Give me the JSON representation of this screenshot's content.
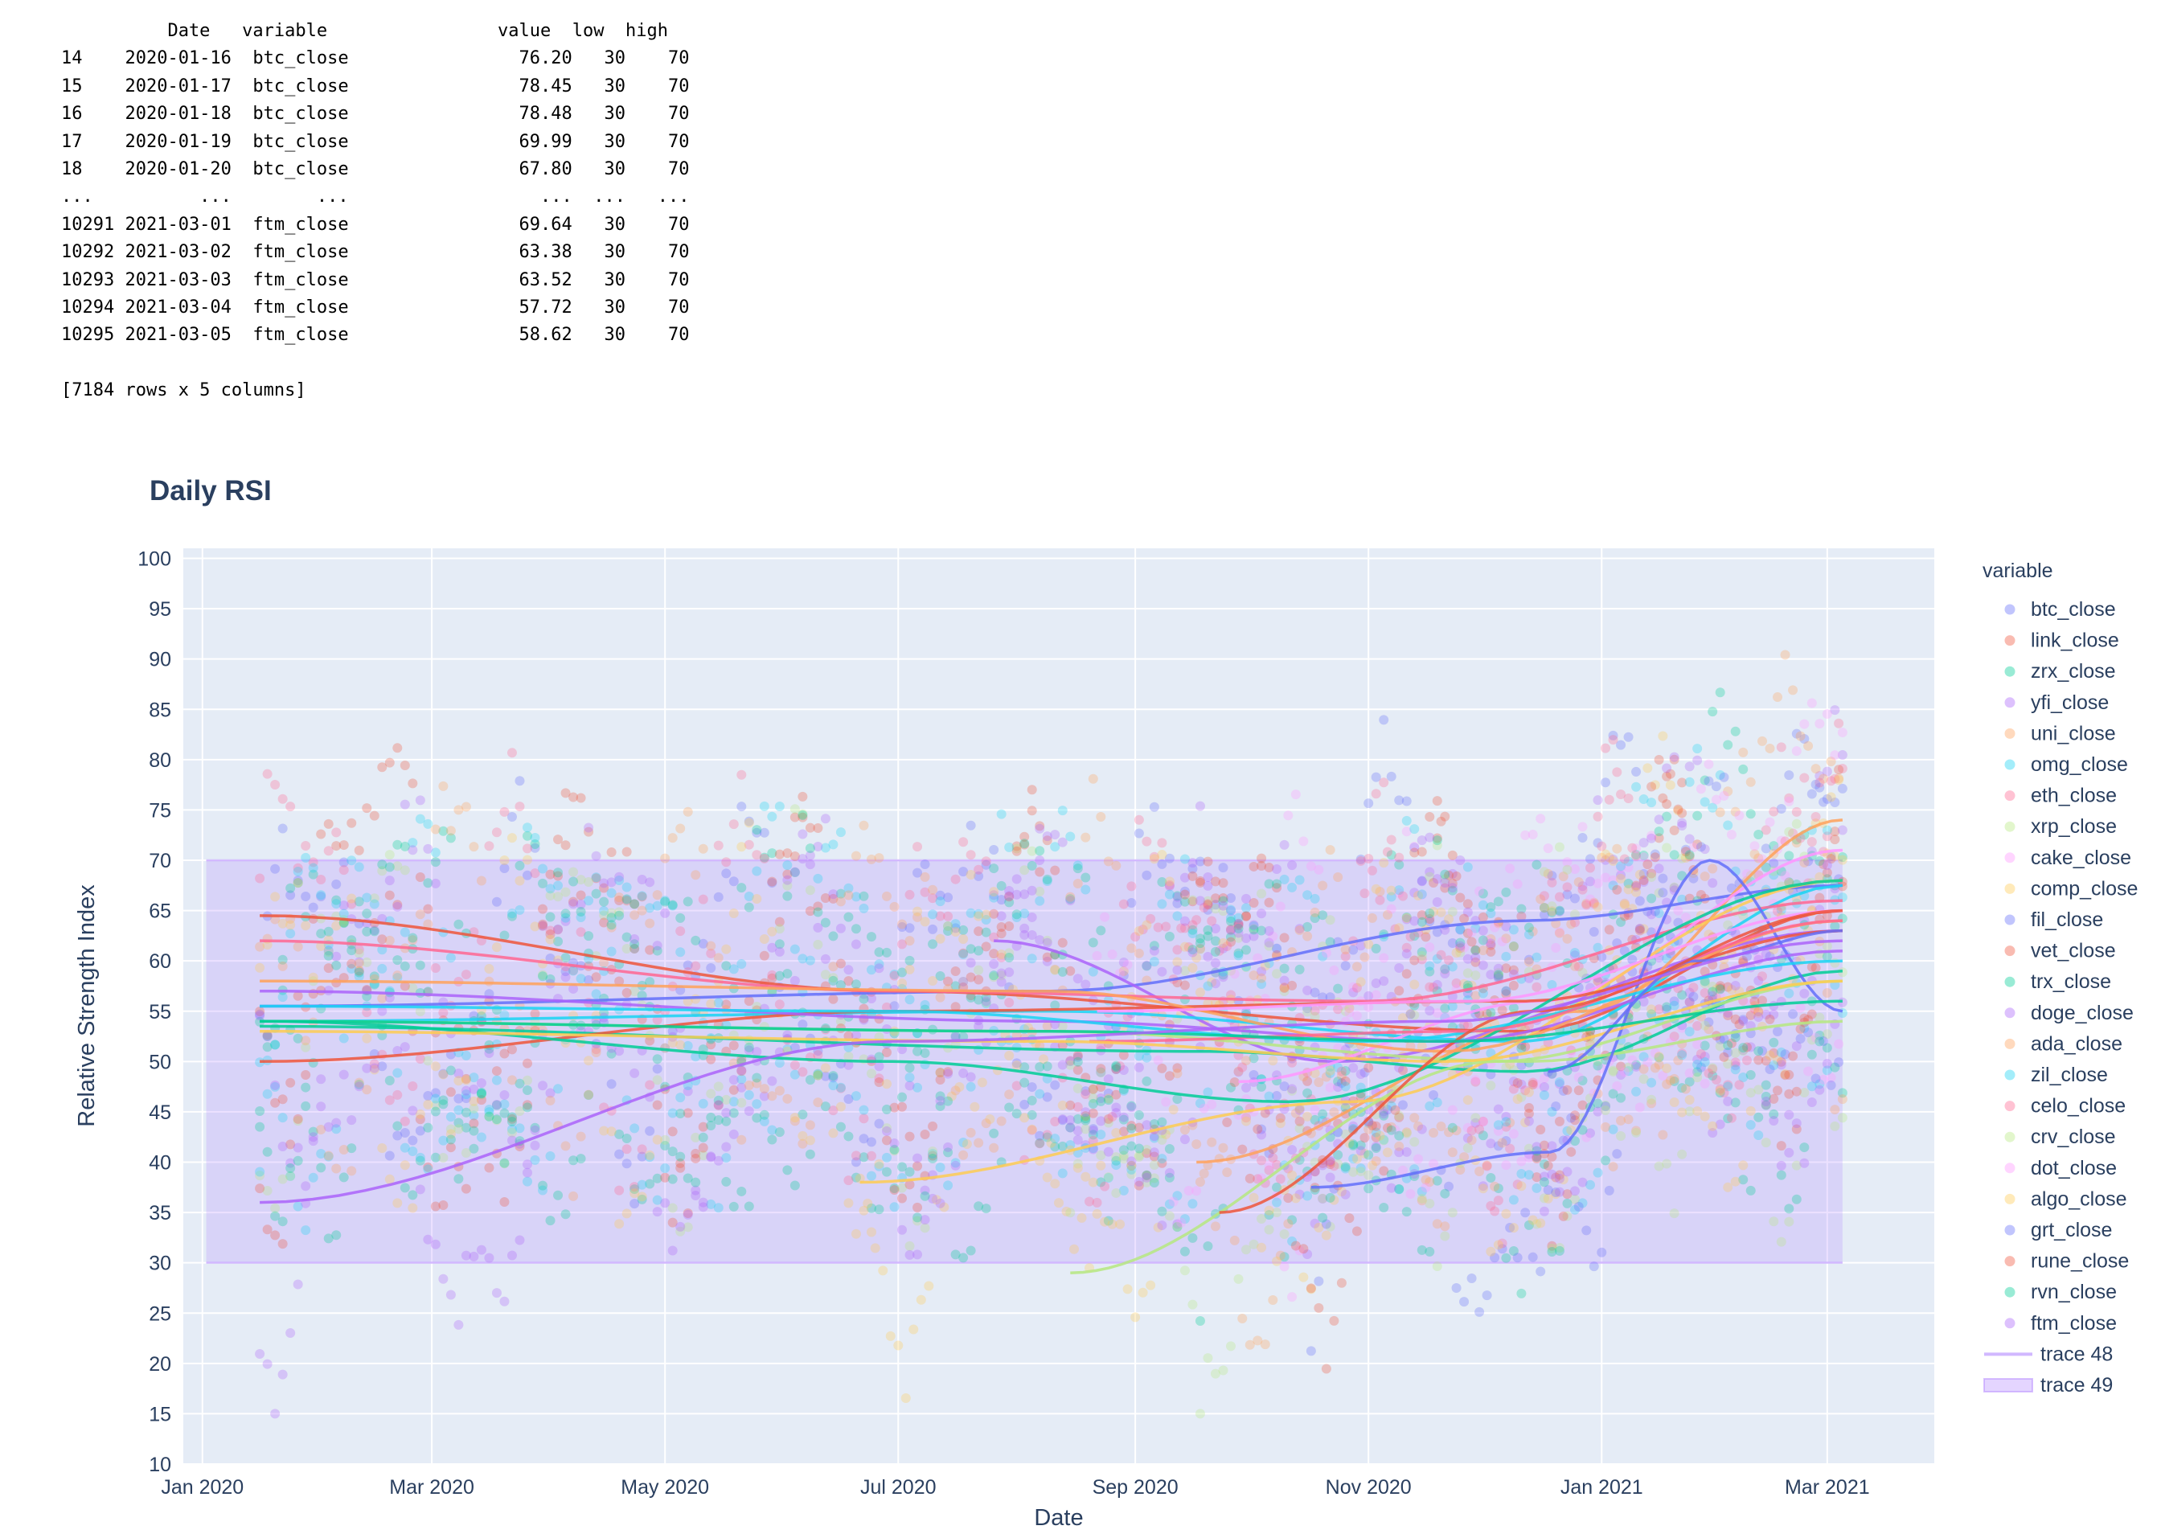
{
  "dataframe": {
    "header": "          Date   variable                value  low  high",
    "rows": [
      "14    2020-01-16  btc_close                76.20   30    70",
      "15    2020-01-17  btc_close                78.45   30    70",
      "16    2020-01-18  btc_close                78.48   30    70",
      "17    2020-01-19  btc_close                69.99   30    70",
      "18    2020-01-20  btc_close                67.80   30    70",
      "...          ...        ...                  ...  ...   ...",
      "10291 2021-03-01  ftm_close                69.64   30    70",
      "10292 2021-03-02  ftm_close                63.38   30    70",
      "10293 2021-03-03  ftm_close                63.52   30    70",
      "10294 2021-03-04  ftm_close                57.72   30    70",
      "10295 2021-03-05  ftm_close                58.62   30    70"
    ],
    "footer": "[7184 rows x 5 columns]"
  },
  "chart_data": {
    "type": "scatter",
    "title": "Daily RSI",
    "xlabel": "Date",
    "ylabel": "Relative Strength Index",
    "legend_title": "variable",
    "legend_placement": "right",
    "grid": true,
    "plot_bgcolor": "#E5ECF6",
    "xlim": [
      "2019-12-27",
      "2021-03-29"
    ],
    "ylim": [
      10,
      101
    ],
    "x_ticks": [
      {
        "date": "2020-01-01",
        "label": "Jan 2020"
      },
      {
        "date": "2020-03-01",
        "label": "Mar 2020"
      },
      {
        "date": "2020-05-01",
        "label": "May 2020"
      },
      {
        "date": "2020-07-01",
        "label": "Jul 2020"
      },
      {
        "date": "2020-09-01",
        "label": "Sep 2020"
      },
      {
        "date": "2020-11-01",
        "label": "Nov 2020"
      },
      {
        "date": "2021-01-01",
        "label": "Jan 2021"
      },
      {
        "date": "2021-03-01",
        "label": "Mar 2021"
      }
    ],
    "y_ticks": [
      10,
      15,
      20,
      25,
      30,
      35,
      40,
      45,
      50,
      55,
      60,
      65,
      70,
      75,
      80,
      85,
      90,
      95,
      100
    ],
    "band": {
      "low": 30,
      "high": 70,
      "start": "2020-01-02",
      "end": "2021-03-05",
      "color": "#B388FF"
    },
    "series": [
      {
        "name": "btc_close",
        "color": "#636EFA",
        "start": "2020-01-16",
        "trend": [
          [
            0,
            55.5
          ],
          [
            0.5,
            57
          ],
          [
            0.8,
            64
          ],
          [
            1,
            67.5
          ]
        ]
      },
      {
        "name": "link_close",
        "color": "#EF553B",
        "start": "2020-01-16",
        "trend": [
          [
            0,
            64.5
          ],
          [
            0.4,
            57
          ],
          [
            0.8,
            53
          ],
          [
            1,
            65
          ]
        ]
      },
      {
        "name": "zrx_close",
        "color": "#00CC96",
        "start": "2020-01-16",
        "trend": [
          [
            0,
            53.5
          ],
          [
            0.6,
            51
          ],
          [
            0.8,
            49
          ],
          [
            1,
            59
          ]
        ]
      },
      {
        "name": "yfi_close",
        "color": "#AB63FA",
        "start": "2020-07-26",
        "trend": [
          [
            0,
            62
          ],
          [
            0.4,
            50
          ],
          [
            1,
            63
          ]
        ]
      },
      {
        "name": "uni_close",
        "color": "#FFA15A",
        "start": "2020-09-17",
        "trend": [
          [
            0,
            40
          ],
          [
            0.6,
            55
          ],
          [
            1,
            74
          ]
        ]
      },
      {
        "name": "omg_close",
        "color": "#19D3F3",
        "start": "2020-01-16",
        "trend": [
          [
            0,
            54
          ],
          [
            0.5,
            55
          ],
          [
            0.8,
            52
          ],
          [
            1,
            67.5
          ]
        ]
      },
      {
        "name": "eth_close",
        "color": "#FF6692",
        "start": "2020-01-16",
        "trend": [
          [
            0,
            62
          ],
          [
            0.4,
            57
          ],
          [
            0.7,
            56
          ],
          [
            1,
            66
          ]
        ]
      },
      {
        "name": "xrp_close",
        "color": "#B6E880",
        "start": "2020-01-16",
        "trend": [
          [
            0,
            54
          ],
          [
            0.5,
            53
          ],
          [
            0.8,
            50
          ],
          [
            1,
            54
          ]
        ]
      },
      {
        "name": "cake_close",
        "color": "#FF97FF",
        "start": "2020-09-28",
        "trend": [
          [
            0,
            48
          ],
          [
            0.5,
            56
          ],
          [
            1,
            71
          ]
        ]
      },
      {
        "name": "comp_close",
        "color": "#FECB52",
        "start": "2020-06-21",
        "trend": [
          [
            0,
            38
          ],
          [
            0.5,
            46
          ],
          [
            1,
            68
          ]
        ]
      },
      {
        "name": "fil_close",
        "color": "#636EFA",
        "start": "2020-10-17",
        "trend": [
          [
            0,
            37.5
          ],
          [
            0.45,
            41
          ],
          [
            0.75,
            70
          ],
          [
            1,
            55
          ]
        ]
      },
      {
        "name": "vet_close",
        "color": "#EF553B",
        "start": "2020-01-16",
        "trend": [
          [
            0,
            50
          ],
          [
            0.4,
            55
          ],
          [
            0.8,
            56
          ],
          [
            1,
            63
          ]
        ]
      },
      {
        "name": "trx_close",
        "color": "#00CC96",
        "start": "2020-01-16",
        "trend": [
          [
            0,
            54
          ],
          [
            0.4,
            50
          ],
          [
            0.65,
            46
          ],
          [
            1,
            68
          ]
        ]
      },
      {
        "name": "doge_close",
        "color": "#AB63FA",
        "start": "2020-01-16",
        "trend": [
          [
            0,
            57
          ],
          [
            0.5,
            54
          ],
          [
            0.75,
            52
          ],
          [
            1,
            61
          ]
        ]
      },
      {
        "name": "ada_close",
        "color": "#FFA15A",
        "start": "2020-01-16",
        "trend": [
          [
            0,
            58
          ],
          [
            0.5,
            57
          ],
          [
            0.75,
            51
          ],
          [
            1,
            64
          ]
        ]
      },
      {
        "name": "zil_close",
        "color": "#19D3F3",
        "start": "2020-01-16",
        "trend": [
          [
            0,
            55.5
          ],
          [
            0.4,
            55
          ],
          [
            0.7,
            52
          ],
          [
            1,
            60
          ]
        ]
      },
      {
        "name": "celo_close",
        "color": "#FF6692",
        "start": "2020-08-20",
        "trend": [
          [
            0,
            52
          ],
          [
            0.5,
            53
          ],
          [
            1,
            64
          ]
        ]
      },
      {
        "name": "crv_close",
        "color": "#B6E880",
        "start": "2020-08-15",
        "trend": [
          [
            0,
            29
          ],
          [
            0.55,
            50
          ],
          [
            1,
            58
          ]
        ]
      },
      {
        "name": "dot_close",
        "color": "#FF97FF",
        "start": "2020-08-22",
        "trend": [
          [
            0,
            55
          ],
          [
            0.5,
            56
          ],
          [
            1,
            65
          ]
        ]
      },
      {
        "name": "algo_close",
        "color": "#FECB52",
        "start": "2020-01-16",
        "trend": [
          [
            0,
            53
          ],
          [
            0.5,
            52
          ],
          [
            0.75,
            50
          ],
          [
            1,
            58
          ]
        ]
      },
      {
        "name": "grt_close",
        "color": "#636EFA",
        "start": "2020-12-18",
        "trend": [
          [
            0,
            49
          ],
          [
            0.5,
            60
          ],
          [
            1,
            63
          ]
        ]
      },
      {
        "name": "rune_close",
        "color": "#EF553B",
        "start": "2020-09-23",
        "trend": [
          [
            0,
            35
          ],
          [
            0.5,
            55
          ],
          [
            1,
            65
          ]
        ]
      },
      {
        "name": "rvn_close",
        "color": "#00CC96",
        "start": "2020-01-16",
        "trend": [
          [
            0,
            54
          ],
          [
            0.5,
            53
          ],
          [
            0.75,
            52
          ],
          [
            1,
            56
          ]
        ]
      },
      {
        "name": "ftm_close",
        "color": "#AB63FA",
        "start": "2020-01-16",
        "trend": [
          [
            0,
            36
          ],
          [
            0.4,
            52
          ],
          [
            0.75,
            54
          ],
          [
            1,
            62
          ]
        ]
      }
    ],
    "band_traces": [
      {
        "name": "trace 48",
        "style": "line",
        "color": "#B388FF"
      },
      {
        "name": "trace 49",
        "style": "fill",
        "color": "#B388FF"
      }
    ]
  }
}
